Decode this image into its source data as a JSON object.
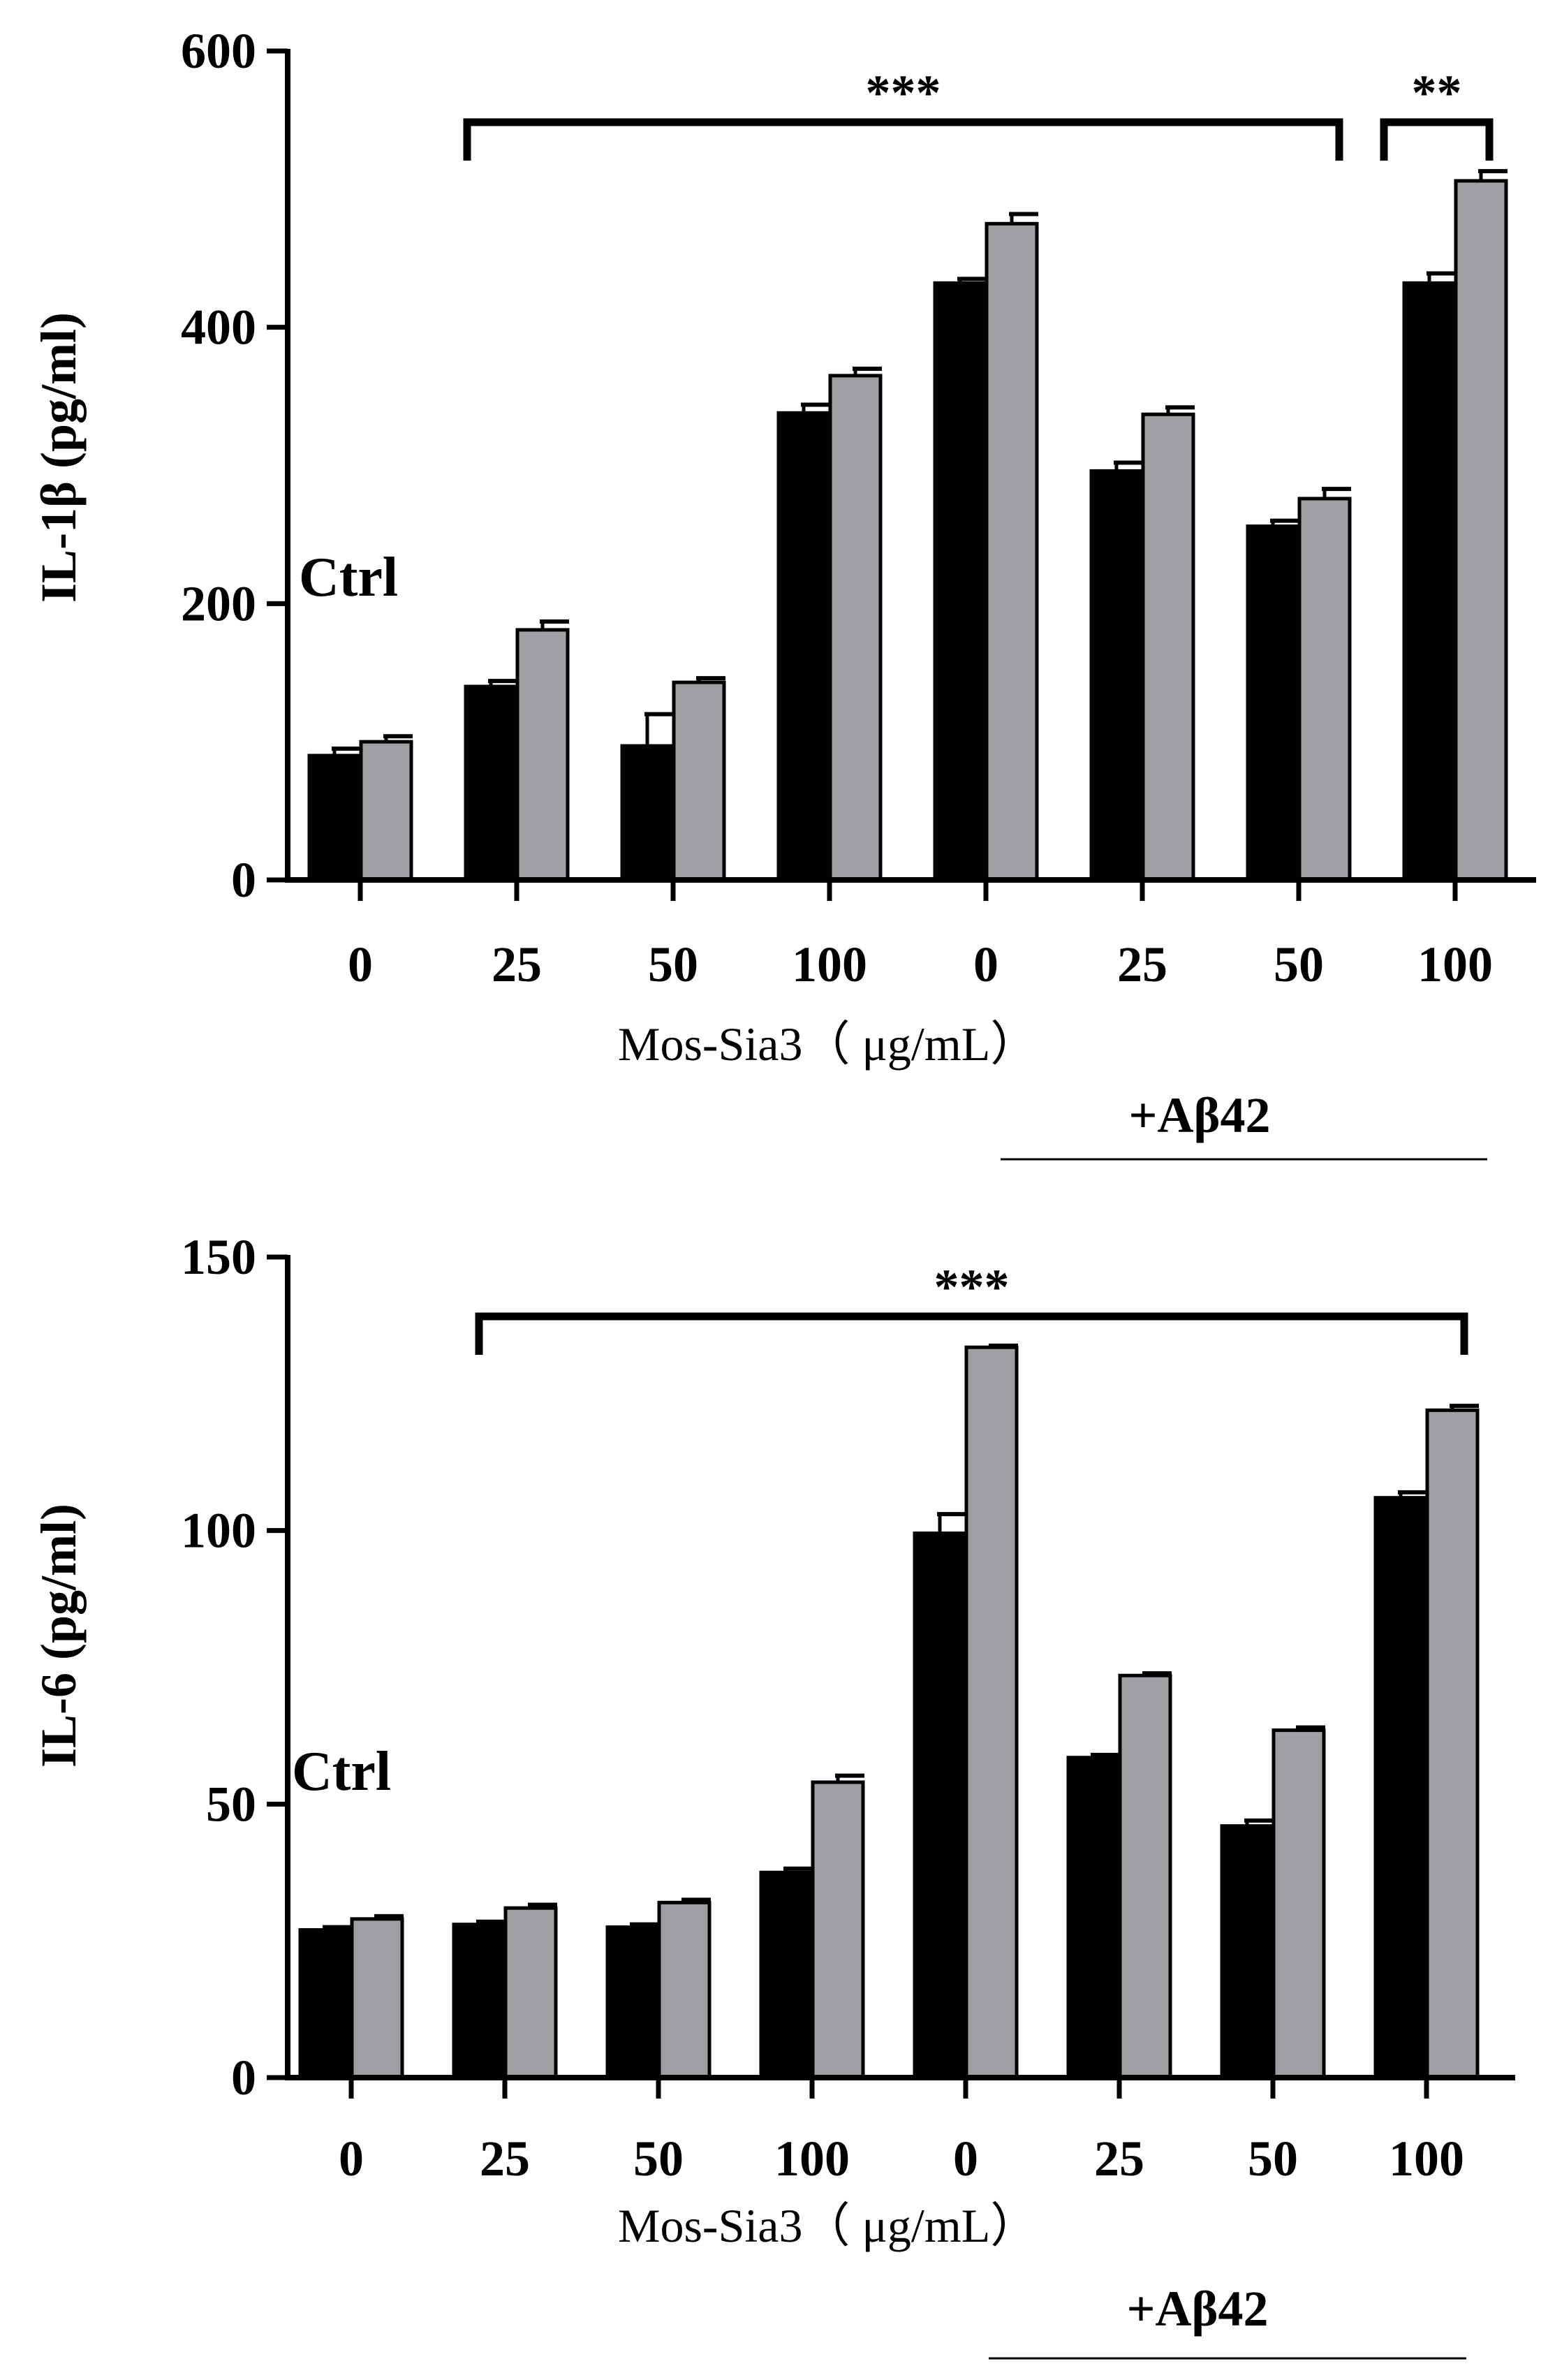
{
  "chart_data": [
    {
      "type": "bar",
      "ylabel": "IL-1β (pg/ml)",
      "ylim": [
        0,
        600
      ],
      "yticks": [
        0,
        200,
        400,
        600
      ],
      "ytick_labels": [
        "0",
        "200",
        "400",
        "600"
      ],
      "categories": [
        "0",
        "25",
        "50",
        "100",
        "0",
        "25",
        "50",
        "100"
      ],
      "xlabel": "Mos-Sia3（  μg/mL）",
      "treatment_label": "+Aβ42",
      "ctrl_label": "Ctrl",
      "series": [
        {
          "name": "black",
          "color": "#000000",
          "values": [
            90,
            140,
            97,
            338,
            432,
            296,
            256,
            432
          ],
          "errors": [
            5,
            4,
            23,
            6,
            3,
            6,
            4,
            7
          ]
        },
        {
          "name": "gray",
          "color": "#A0A0A4",
          "values": [
            100,
            181,
            143,
            365,
            475,
            337,
            276,
            506
          ],
          "errors": [
            4,
            6,
            3,
            5,
            7,
            5,
            7,
            7
          ]
        }
      ],
      "significance": [
        {
          "label": "***",
          "from_group": 1,
          "to_group": 6
        },
        {
          "label": "**",
          "from_group": 7,
          "to_group": 7
        }
      ]
    },
    {
      "type": "bar",
      "ylabel": "IL-6 (pg/ml)",
      "ylim": [
        0,
        150
      ],
      "yticks": [
        0,
        50,
        100,
        150
      ],
      "ytick_labels": [
        "0",
        "50",
        "100",
        "150"
      ],
      "categories": [
        "0",
        "25",
        "50",
        "100",
        "0",
        "25",
        "50",
        "100"
      ],
      "xlabel": "Mos-Sia3（  μg/mL）",
      "treatment_label": "+Aβ42",
      "ctrl_label": "Ctrl",
      "series": [
        {
          "name": "black",
          "color": "#000000",
          "values": [
            27,
            28,
            27.5,
            37.5,
            99.5,
            58.5,
            46,
            106
          ],
          "errors": [
            0.5,
            0.5,
            0.5,
            0.7,
            3.5,
            0.5,
            1,
            1
          ]
        },
        {
          "name": "gray",
          "color": "#A0A0A4",
          "values": [
            29,
            31,
            32,
            54,
            133.5,
            73.5,
            63.5,
            122
          ],
          "errors": [
            0.5,
            0.6,
            0.5,
            1.2,
            0.3,
            0.4,
            0.5,
            0.8
          ]
        }
      ],
      "significance": [
        {
          "label": "***",
          "from_group": 1,
          "to_group": 7
        }
      ]
    }
  ]
}
